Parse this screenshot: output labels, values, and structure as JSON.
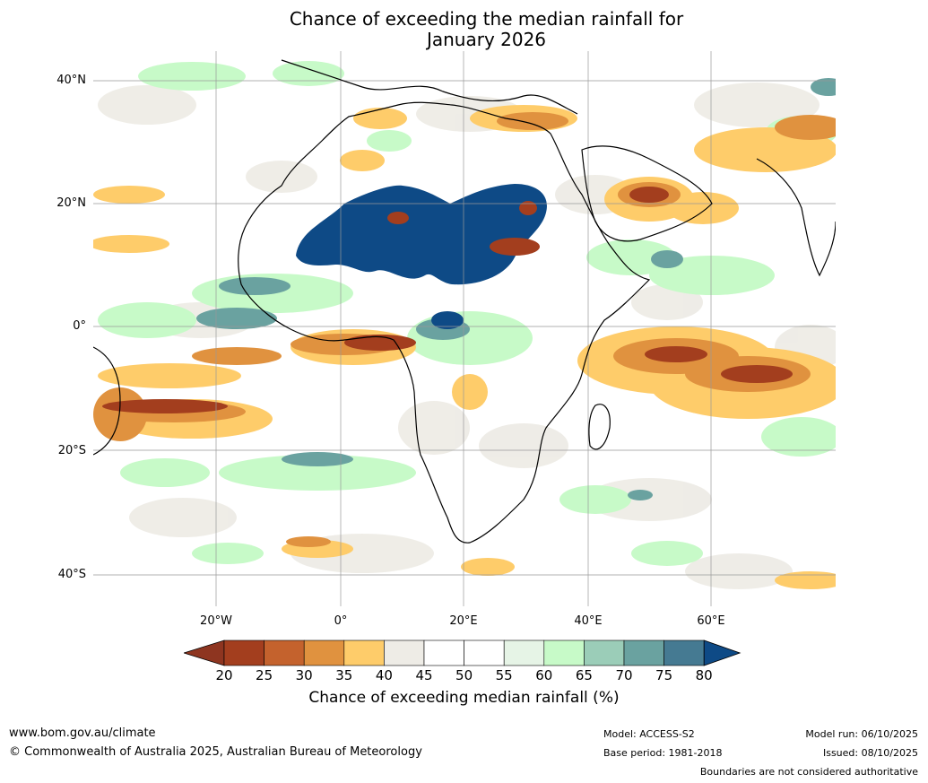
{
  "title": {
    "line1": "Chance of exceeding the median rainfall for",
    "line2": "January 2026"
  },
  "lat_labels": [
    "40°N",
    "20°N",
    "0°",
    "20°S",
    "40°S"
  ],
  "lon_labels": [
    "20°W",
    "0°",
    "20°E",
    "40°E",
    "60°E"
  ],
  "colorbar": {
    "ticks": [
      "20",
      "25",
      "30",
      "35",
      "40",
      "45",
      "50",
      "55",
      "60",
      "65",
      "70",
      "75",
      "80"
    ],
    "colors": [
      "#a33e1e",
      "#c4622d",
      "#e0923f",
      "#fecc6a",
      "#eeece6",
      "#ffffff",
      "#ffffff",
      "#e6f4e6",
      "#c7fac8",
      "#9bcdb8",
      "#6aa2a0",
      "#457a92",
      "#0e4a86"
    ],
    "low_color": "#8e3520",
    "high_color": "#0e4a86",
    "label": "Chance of exceeding median rainfall (%)"
  },
  "footer": {
    "website": "www.bom.gov.au/climate",
    "copyright": "© Commonwealth of Australia 2025, Australian Bureau of Meteorology",
    "model": "Model: ACCESS-S2",
    "base_period": "Base period: 1981-2018",
    "model_run": "Model run: 06/10/2025",
    "issued": "Issued: 08/10/2025",
    "disclaimer": "Boundaries are not considered authoritative"
  },
  "colors": {
    "dry_strong": "#a33e1e",
    "dry": "#c4622d",
    "dry_moderate": "#e0923f",
    "dry_light": "#fecc6a",
    "near_median": "#eeece6",
    "wet_light": "#c7fac8",
    "wet": "#6aa2a0",
    "wet_strong": "#0e4a86"
  }
}
